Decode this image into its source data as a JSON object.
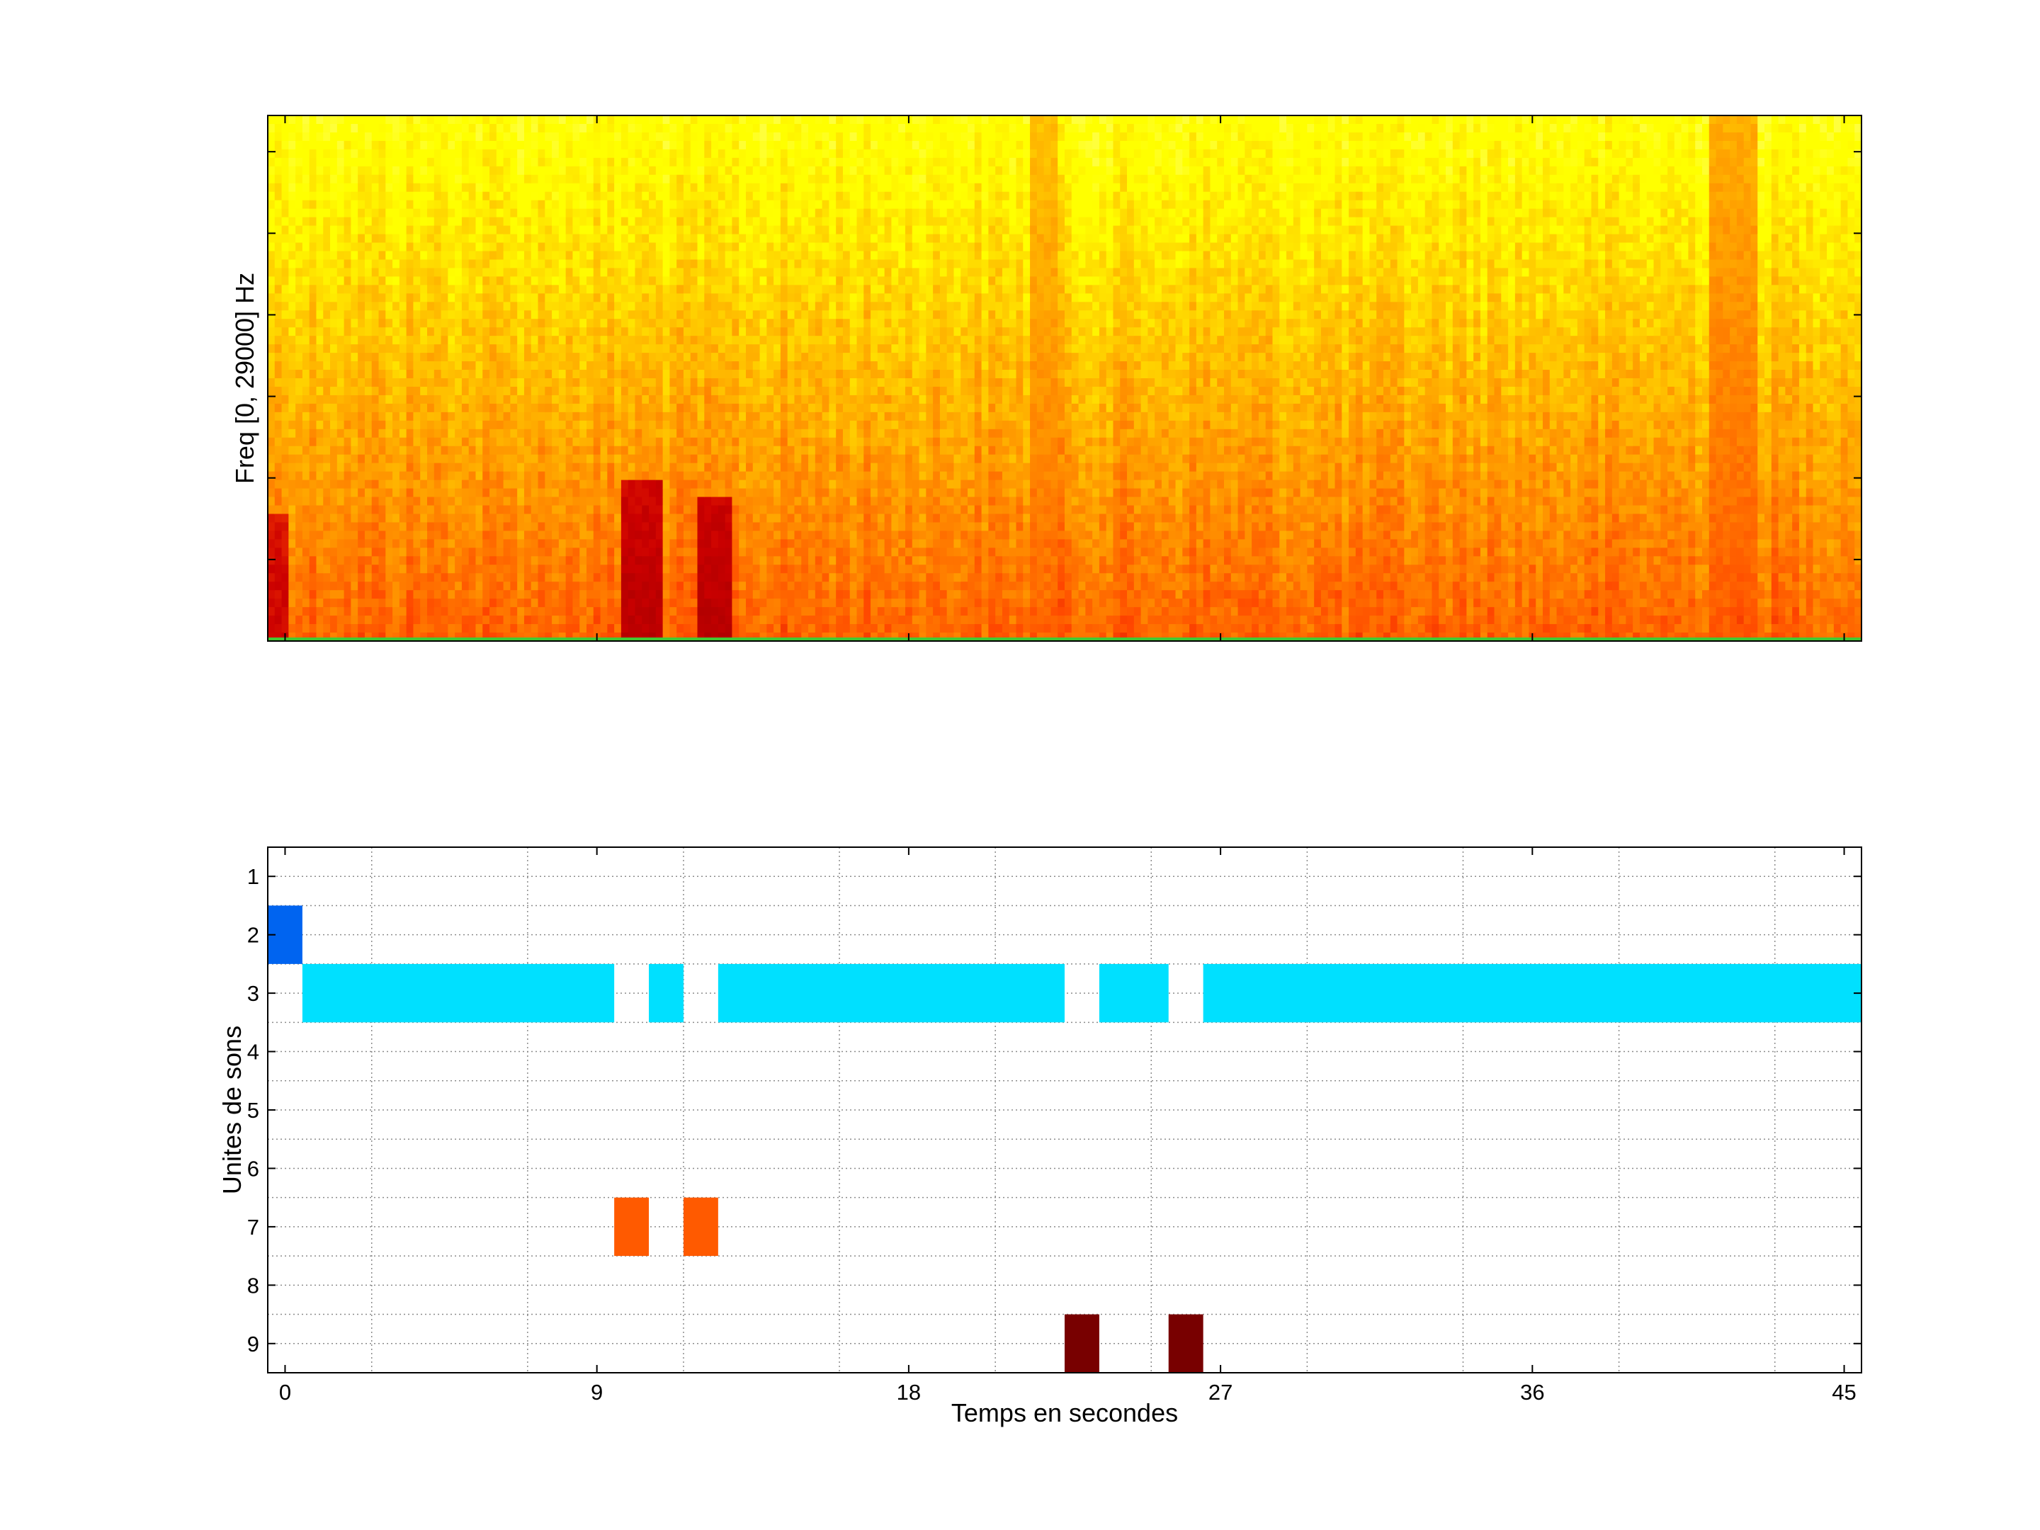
{
  "chart_data": [
    {
      "type": "heatmap",
      "title": "",
      "xlabel": "",
      "ylabel": "Freq [0, 29000] Hz",
      "ylim": [
        0,
        29000
      ],
      "xlim": [
        -0.5,
        45.5
      ],
      "grid": false,
      "colormap": "hot",
      "colors": {
        "low": "#a40000",
        "mid": "#e85a00",
        "high": "#ffff24",
        "baseline": "#42c832"
      },
      "features": [
        {
          "label": "strong low-frequency burst",
          "t_start": 9.7,
          "t_end": 10.8,
          "f_max": 9000,
          "intensity": 0.92
        },
        {
          "label": "strong low-frequency burst",
          "t_start": 11.9,
          "t_end": 12.8,
          "f_max": 8000,
          "intensity": 0.92
        },
        {
          "label": "low-frequency energy",
          "t_start": -0.5,
          "t_end": 0.2,
          "f_max": 7000,
          "intensity": 0.85
        },
        {
          "label": "broadband event",
          "t_start": 21.6,
          "t_end": 22.4,
          "f_max": 29000,
          "intensity": 0.55
        },
        {
          "label": "broadband event",
          "t_start": 41.2,
          "t_end": 42.4,
          "f_max": 29000,
          "intensity": 0.6
        }
      ]
    },
    {
      "type": "bar",
      "orientation": "horizontal-segments",
      "title": "",
      "xlabel": "Temps en secondes",
      "ylabel": "Unites de sons",
      "xlim": [
        -0.5,
        45.5
      ],
      "ylim": [
        9.5,
        0.5
      ],
      "grid": true,
      "x_ticks": [
        "0",
        "9",
        "18",
        "27",
        "36",
        "45"
      ],
      "y_ticks": [
        "1",
        "2",
        "3",
        "4",
        "5",
        "6",
        "7",
        "8",
        "9"
      ],
      "series": [
        {
          "name": "2",
          "unit": 2,
          "color": "#0064f0",
          "segments": [
            [
              -0.5,
              0.5
            ]
          ]
        },
        {
          "name": "3",
          "unit": 3,
          "color": "#00e0ff",
          "segments": [
            [
              0.5,
              9.5
            ],
            [
              10.5,
              11.5
            ],
            [
              12.5,
              22.5
            ],
            [
              23.5,
              25.5
            ],
            [
              26.5,
              45.5
            ]
          ]
        },
        {
          "name": "7",
          "unit": 7,
          "color": "#ff5a00",
          "segments": [
            [
              9.5,
              10.5
            ],
            [
              11.5,
              12.5
            ]
          ]
        },
        {
          "name": "9",
          "unit": 9,
          "color": "#780000",
          "segments": [
            [
              22.5,
              23.5
            ],
            [
              25.5,
              26.5
            ]
          ]
        }
      ]
    }
  ]
}
